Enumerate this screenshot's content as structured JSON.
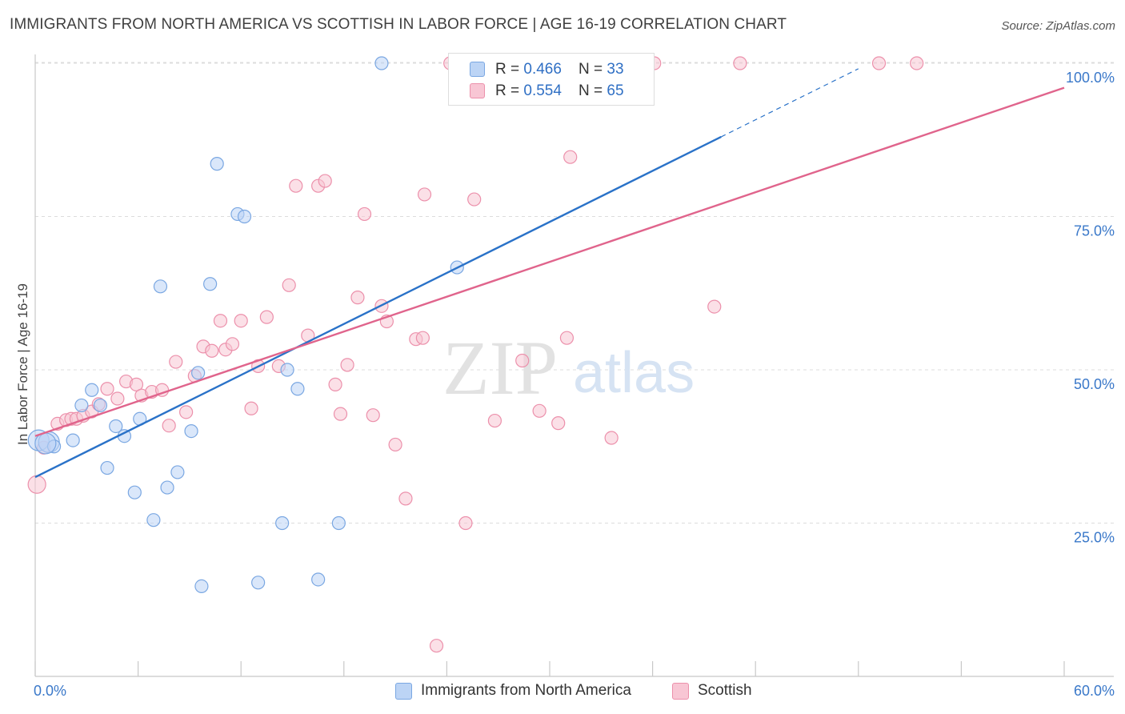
{
  "title": "IMMIGRANTS FROM NORTH AMERICA VS SCOTTISH IN LABOR FORCE | AGE 16-19 CORRELATION CHART",
  "source": "Source: ZipAtlas.com",
  "watermark": {
    "zip": "ZIP",
    "atlas": "atlas"
  },
  "legend": {
    "r_label": "R = ",
    "n_label": "N = ",
    "items": [
      {
        "name": "Immigrants from North America",
        "r": "0.466",
        "n": "33",
        "fill": "#bcd4f5",
        "stroke": "#7aa7e2"
      },
      {
        "name": "Scottish",
        "r": "0.554",
        "n": "65",
        "fill": "#f8c6d4",
        "stroke": "#ec90ab"
      }
    ]
  },
  "colors": {
    "blue_line": "#2a72c8",
    "pink_line": "#e0648c",
    "tick_label": "#3a78c9"
  },
  "chart_data": {
    "type": "scatter",
    "title": "IMMIGRANTS FROM NORTH AMERICA VS SCOTTISH IN LABOR FORCE | AGE 16-19 CORRELATION CHART",
    "xlabel": "",
    "ylabel": "In Labor Force | Age 16-19",
    "xlim": [
      0,
      60
    ],
    "ylim": [
      0,
      103
    ],
    "x_tick_labels": [
      "0.0%",
      "60.0%"
    ],
    "y_ticks": [
      25,
      50,
      75,
      100
    ],
    "y_tick_labels": [
      "25.0%",
      "50.0%",
      "75.0%",
      "100.0%"
    ],
    "grid": true,
    "legend_position": "top-center",
    "series": [
      {
        "name": "Immigrants from North America",
        "points": [
          [
            0.2,
            38.5
          ],
          [
            0.8,
            38.2
          ],
          [
            1.1,
            37.5
          ],
          [
            2.2,
            38.5
          ],
          [
            3.3,
            46.7
          ],
          [
            2.7,
            44.2
          ],
          [
            3.8,
            44.2
          ],
          [
            4.2,
            34.0
          ],
          [
            4.7,
            40.8
          ],
          [
            5.2,
            39.2
          ],
          [
            5.8,
            30.0
          ],
          [
            6.1,
            42.0
          ],
          [
            6.9,
            25.5
          ],
          [
            7.3,
            63.6
          ],
          [
            7.7,
            30.8
          ],
          [
            8.3,
            33.3
          ],
          [
            9.1,
            40.0
          ],
          [
            9.5,
            49.5
          ],
          [
            9.7,
            14.7
          ],
          [
            10.2,
            64.0
          ],
          [
            10.6,
            83.6
          ],
          [
            11.8,
            75.4
          ],
          [
            12.2,
            75.0
          ],
          [
            13.0,
            15.3
          ],
          [
            14.7,
            50.0
          ],
          [
            14.4,
            25.0
          ],
          [
            15.3,
            46.9
          ],
          [
            16.5,
            15.8
          ],
          [
            17.7,
            25.0
          ],
          [
            20.2,
            100.0
          ],
          [
            24.6,
            66.7
          ],
          [
            32.5,
            100.0
          ],
          [
            0.6,
            38.0
          ]
        ]
      },
      {
        "name": "Scottish",
        "points": [
          [
            0.1,
            31.3
          ],
          [
            0.5,
            37.3
          ],
          [
            1.3,
            41.2
          ],
          [
            1.8,
            41.8
          ],
          [
            2.1,
            42.0
          ],
          [
            2.4,
            42.0
          ],
          [
            2.8,
            42.5
          ],
          [
            3.3,
            43.2
          ],
          [
            3.7,
            44.4
          ],
          [
            4.2,
            46.9
          ],
          [
            4.8,
            45.3
          ],
          [
            5.3,
            48.1
          ],
          [
            5.9,
            47.6
          ],
          [
            6.2,
            45.8
          ],
          [
            6.8,
            46.4
          ],
          [
            7.4,
            46.7
          ],
          [
            7.8,
            40.9
          ],
          [
            8.2,
            51.3
          ],
          [
            8.8,
            43.1
          ],
          [
            9.3,
            49.0
          ],
          [
            9.8,
            53.8
          ],
          [
            10.3,
            53.1
          ],
          [
            10.8,
            58.0
          ],
          [
            11.1,
            53.3
          ],
          [
            11.5,
            54.2
          ],
          [
            12.0,
            58.0
          ],
          [
            12.6,
            43.7
          ],
          [
            13.0,
            50.6
          ],
          [
            13.5,
            58.6
          ],
          [
            14.2,
            50.6
          ],
          [
            14.8,
            63.8
          ],
          [
            15.2,
            80.0
          ],
          [
            15.9,
            55.6
          ],
          [
            16.5,
            80.0
          ],
          [
            16.9,
            80.8
          ],
          [
            17.5,
            47.6
          ],
          [
            17.8,
            42.8
          ],
          [
            18.2,
            50.8
          ],
          [
            18.8,
            61.8
          ],
          [
            19.2,
            75.4
          ],
          [
            19.7,
            42.6
          ],
          [
            20.2,
            60.4
          ],
          [
            20.5,
            57.9
          ],
          [
            21.0,
            37.8
          ],
          [
            21.6,
            29.0
          ],
          [
            22.2,
            55.0
          ],
          [
            22.6,
            55.2
          ],
          [
            22.7,
            78.6
          ],
          [
            23.4,
            5.0
          ],
          [
            24.2,
            100.0
          ],
          [
            25.1,
            25.0
          ],
          [
            25.6,
            77.8
          ],
          [
            26.8,
            41.7
          ],
          [
            28.4,
            51.5
          ],
          [
            29.4,
            43.3
          ],
          [
            30.5,
            41.3
          ],
          [
            31.0,
            55.2
          ],
          [
            31.2,
            84.7
          ],
          [
            33.6,
            38.9
          ],
          [
            34.6,
            100.0
          ],
          [
            36.1,
            100.0
          ],
          [
            39.6,
            60.3
          ],
          [
            41.1,
            100.0
          ],
          [
            49.2,
            100.0
          ],
          [
            51.4,
            100.0
          ]
        ]
      }
    ],
    "trend_lines": [
      {
        "series": "Immigrants from North America",
        "x0": 0,
        "y0": 32.5,
        "x1": 40,
        "y1": 88.0,
        "dashed_to_x": 48
      },
      {
        "series": "Scottish",
        "x0": 0,
        "y0": 39.2,
        "x1": 60,
        "y1": 96.0
      }
    ]
  }
}
